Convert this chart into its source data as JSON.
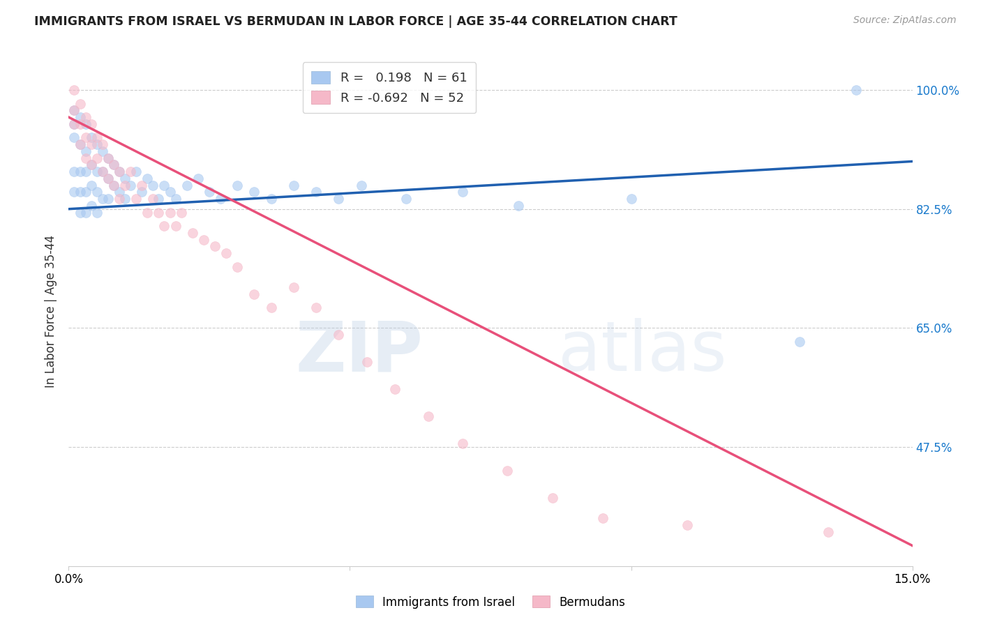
{
  "title": "IMMIGRANTS FROM ISRAEL VS BERMUDAN IN LABOR FORCE | AGE 35-44 CORRELATION CHART",
  "source": "Source: ZipAtlas.com",
  "ylabel": "In Labor Force | Age 35-44",
  "x_min": 0.0,
  "x_max": 0.15,
  "y_min": 0.3,
  "y_max": 1.05,
  "x_tick_positions": [
    0.0,
    0.05,
    0.1,
    0.15
  ],
  "x_tick_labels": [
    "0.0%",
    "",
    "",
    "15.0%"
  ],
  "y_tick_positions": [
    0.475,
    0.65,
    0.825,
    1.0
  ],
  "y_tick_labels": [
    "47.5%",
    "65.0%",
    "82.5%",
    "100.0%"
  ],
  "grid_color": "#cccccc",
  "background_color": "#ffffff",
  "blue_color": "#a8c8f0",
  "pink_color": "#f5b8c8",
  "blue_line_color": "#2060b0",
  "pink_line_color": "#e8507a",
  "R_blue": 0.198,
  "N_blue": 61,
  "R_pink": -0.692,
  "N_pink": 52,
  "legend_label_blue": "Immigrants from Israel",
  "legend_label_pink": "Bermudans",
  "blue_line_x0": 0.0,
  "blue_line_x1": 0.15,
  "blue_line_y0": 0.825,
  "blue_line_y1": 0.895,
  "pink_line_x0": 0.0,
  "pink_line_x1": 0.15,
  "pink_line_y0": 0.96,
  "pink_line_y1": 0.33,
  "blue_scatter_x": [
    0.001,
    0.001,
    0.001,
    0.001,
    0.001,
    0.002,
    0.002,
    0.002,
    0.002,
    0.002,
    0.003,
    0.003,
    0.003,
    0.003,
    0.003,
    0.004,
    0.004,
    0.004,
    0.004,
    0.005,
    0.005,
    0.005,
    0.005,
    0.006,
    0.006,
    0.006,
    0.007,
    0.007,
    0.007,
    0.008,
    0.008,
    0.009,
    0.009,
    0.01,
    0.01,
    0.011,
    0.012,
    0.013,
    0.014,
    0.015,
    0.016,
    0.017,
    0.018,
    0.019,
    0.021,
    0.023,
    0.025,
    0.027,
    0.03,
    0.033,
    0.036,
    0.04,
    0.044,
    0.048,
    0.052,
    0.06,
    0.07,
    0.08,
    0.1,
    0.13,
    0.14
  ],
  "blue_scatter_y": [
    0.97,
    0.95,
    0.93,
    0.88,
    0.85,
    0.96,
    0.92,
    0.88,
    0.85,
    0.82,
    0.95,
    0.91,
    0.88,
    0.85,
    0.82,
    0.93,
    0.89,
    0.86,
    0.83,
    0.92,
    0.88,
    0.85,
    0.82,
    0.91,
    0.88,
    0.84,
    0.9,
    0.87,
    0.84,
    0.89,
    0.86,
    0.88,
    0.85,
    0.87,
    0.84,
    0.86,
    0.88,
    0.85,
    0.87,
    0.86,
    0.84,
    0.86,
    0.85,
    0.84,
    0.86,
    0.87,
    0.85,
    0.84,
    0.86,
    0.85,
    0.84,
    0.86,
    0.85,
    0.84,
    0.86,
    0.84,
    0.85,
    0.83,
    0.84,
    0.63,
    1.0
  ],
  "pink_scatter_x": [
    0.001,
    0.001,
    0.001,
    0.002,
    0.002,
    0.002,
    0.003,
    0.003,
    0.003,
    0.004,
    0.004,
    0.004,
    0.005,
    0.005,
    0.006,
    0.006,
    0.007,
    0.007,
    0.008,
    0.008,
    0.009,
    0.009,
    0.01,
    0.011,
    0.012,
    0.013,
    0.014,
    0.015,
    0.016,
    0.017,
    0.018,
    0.019,
    0.02,
    0.022,
    0.024,
    0.026,
    0.028,
    0.03,
    0.033,
    0.036,
    0.04,
    0.044,
    0.048,
    0.053,
    0.058,
    0.064,
    0.07,
    0.078,
    0.086,
    0.095,
    0.11,
    0.135
  ],
  "pink_scatter_y": [
    1.0,
    0.97,
    0.95,
    0.98,
    0.95,
    0.92,
    0.96,
    0.93,
    0.9,
    0.95,
    0.92,
    0.89,
    0.93,
    0.9,
    0.92,
    0.88,
    0.9,
    0.87,
    0.89,
    0.86,
    0.88,
    0.84,
    0.86,
    0.88,
    0.84,
    0.86,
    0.82,
    0.84,
    0.82,
    0.8,
    0.82,
    0.8,
    0.82,
    0.79,
    0.78,
    0.77,
    0.76,
    0.74,
    0.7,
    0.68,
    0.71,
    0.68,
    0.64,
    0.6,
    0.56,
    0.52,
    0.48,
    0.44,
    0.4,
    0.37,
    0.36,
    0.35
  ]
}
